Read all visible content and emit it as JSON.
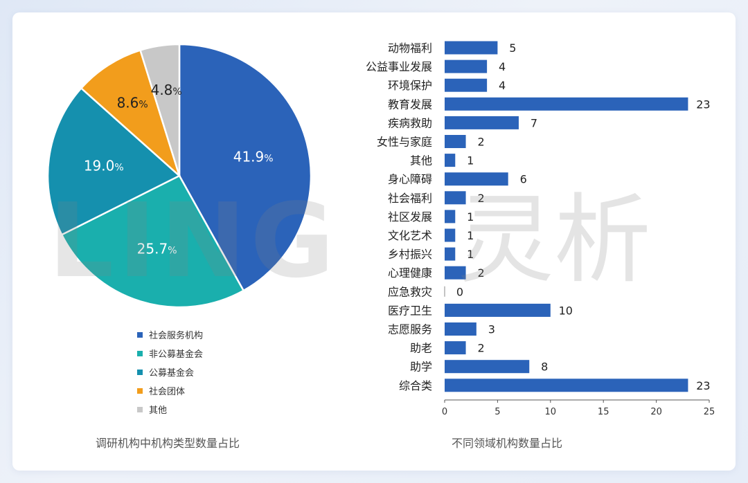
{
  "left_chart": {
    "caption": "调研机构中机构类型数量占比",
    "chart_data": {
      "type": "pie",
      "slices": [
        {
          "label": "社会服务机构",
          "value": 41.9,
          "display": "41.9",
          "color": "#2b63b9"
        },
        {
          "label": "非公募基金会",
          "value": 25.7,
          "display": "25.7",
          "color": "#1aafad"
        },
        {
          "label": "公募基金会",
          "value": 19.0,
          "display": "19.0",
          "color": "#1590ae"
        },
        {
          "label": "社会团体",
          "value": 8.6,
          "display": "8.6",
          "color": "#f29d1c"
        },
        {
          "label": "其他",
          "value": 4.8,
          "display": "4.8",
          "color": "#c8c8c8"
        }
      ],
      "unit": "%",
      "legend_position": "bottom"
    }
  },
  "right_chart": {
    "caption": "不同领域机构数量占比",
    "chart_data": {
      "type": "bar",
      "orientation": "horizontal",
      "categories": [
        "动物福利",
        "公益事业发展",
        "环境保护",
        "教育发展",
        "疾病救助",
        "女性与家庭",
        "其他",
        "身心障碍",
        "社会福利",
        "社区发展",
        "文化艺术",
        "乡村振兴",
        "心理健康",
        "应急救灾",
        "医疗卫生",
        "志愿服务",
        "助老",
        "助学",
        "综合类"
      ],
      "values": [
        5,
        4,
        4,
        23,
        7,
        2,
        1,
        6,
        2,
        1,
        1,
        1,
        2,
        0,
        10,
        3,
        2,
        8,
        23
      ],
      "xlim": [
        0,
        25
      ],
      "xticks": [
        0,
        5,
        10,
        15,
        20,
        25
      ],
      "bar_color": "#2b63b9",
      "grid": false
    }
  },
  "watermark": {
    "latin": "LING",
    "cn": "灵析"
  }
}
